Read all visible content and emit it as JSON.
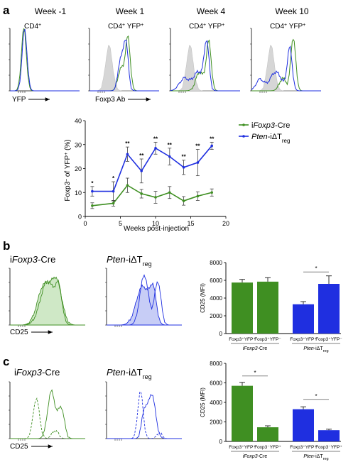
{
  "colors": {
    "green": "#3f8f22",
    "blue": "#1f2fe0",
    "gray": "#d6d6d6",
    "green_fill": "#cfe8c6",
    "blue_fill": "#c7cdf6"
  },
  "panel_a": {
    "label": "a",
    "weeks": [
      "Week -1",
      "Week 1",
      "Week 4",
      "Week 10"
    ],
    "sub": [
      "CD4",
      "CD4",
      "CD4",
      "CD4"
    ],
    "sub_sup": [
      "+",
      "+",
      "+",
      "+"
    ],
    "sub2": [
      "",
      "YFP",
      "YFP",
      "YFP"
    ],
    "sub2_sup": [
      "",
      "+",
      "+",
      "+"
    ],
    "axis_yfp": "YFP",
    "axis_foxp3": "Foxp3 Ab"
  },
  "panel_b": {
    "label": "b",
    "title_green_pre": "i",
    "title_green_it": "Foxp3",
    "title_green_post": "-Cre",
    "title_blue_it": "Pten",
    "title_blue_post": "-iΔT",
    "title_blue_sub": "reg",
    "axis": "CD25"
  },
  "panel_c": {
    "label": "c",
    "title_green_pre": "i",
    "title_green_it": "Foxp3",
    "title_green_post": "-Cre",
    "title_blue_it": "Pten",
    "title_blue_post": "-iΔT",
    "title_blue_sub": "reg",
    "axis": "CD25"
  },
  "chart_data": [
    {
      "type": "line",
      "xlabel": "Weeks post-injection",
      "ylabel": "Foxp3⁻ of YFP⁺ (%)",
      "xlim": [
        0,
        20
      ],
      "ylim": [
        0,
        40
      ],
      "xticks": [
        0,
        5,
        10,
        15,
        20
      ],
      "yticks": [
        0,
        10,
        20,
        30,
        40
      ],
      "legend_position": "top-right",
      "series": [
        {
          "name_pre": "i",
          "name_it": "Foxp3",
          "name_post": "-Cre",
          "name_sub": "",
          "color": "#3f8f22",
          "x": [
            1,
            4,
            6,
            8,
            10,
            12,
            14,
            16,
            18
          ],
          "y": [
            4.5,
            5.5,
            13,
            9.5,
            8,
            10,
            6.5,
            8.5,
            10
          ],
          "err": [
            1.2,
            1.2,
            3,
            1.8,
            2.5,
            2.5,
            1.8,
            1.8,
            1.5
          ]
        },
        {
          "name_pre": "",
          "name_it": "Pten",
          "name_post": "-iΔT",
          "name_sub": "reg",
          "color": "#1f2fe0",
          "x": [
            1,
            4,
            6,
            8,
            10,
            12,
            14,
            16,
            18
          ],
          "y": [
            10.5,
            10.5,
            26,
            19,
            28.5,
            25,
            20.5,
            22.5,
            29.5
          ],
          "err": [
            2,
            4,
            3,
            5,
            2.5,
            3.5,
            3,
            5.5,
            1.5
          ],
          "sig": [
            "*",
            "*",
            "**",
            "**",
            "**",
            "**",
            "**",
            "**",
            "**"
          ]
        }
      ]
    },
    {
      "type": "bar",
      "ylabel": "CD25 (MFI)",
      "ylim": [
        0,
        8000
      ],
      "yticks": [
        0,
        2000,
        4000,
        6000,
        8000
      ],
      "categories": [
        "Foxp3⁺YFP⁺",
        "Foxp3⁺YFP⁻",
        "Foxp3⁺YFP⁺",
        "Foxp3⁺YFP⁻"
      ],
      "values": [
        5750,
        5850,
        3300,
        5600
      ],
      "errors": [
        350,
        450,
        300,
        900
      ],
      "colors": [
        "#3f8f22",
        "#3f8f22",
        "#1f2fe0",
        "#1f2fe0"
      ],
      "groups": [
        {
          "pre": "i",
          "it": "Foxp3",
          "post": "-Cre",
          "sub": ""
        },
        {
          "pre": "",
          "it": "Pten",
          "post": "-iΔT",
          "sub": "reg"
        }
      ],
      "significance": "*"
    },
    {
      "type": "bar",
      "ylabel": "CD25 (MFI)",
      "ylim": [
        0,
        8000
      ],
      "yticks": [
        0,
        2000,
        4000,
        6000,
        8000
      ],
      "categories": [
        "Foxp3⁺YFP⁺",
        "Foxp3⁻YFP⁺",
        "Foxp3⁺YFP⁺",
        "Foxp3⁻YFP⁺"
      ],
      "values": [
        5700,
        1450,
        3300,
        1150
      ],
      "errors": [
        350,
        150,
        250,
        100
      ],
      "colors": [
        "#3f8f22",
        "#3f8f22",
        "#1f2fe0",
        "#1f2fe0"
      ],
      "groups": [
        {
          "pre": "i",
          "it": "Foxp3",
          "post": "-Cre",
          "sub": ""
        },
        {
          "pre": "",
          "it": "Pten",
          "post": "-iΔT",
          "sub": "reg"
        }
      ],
      "significance": "*"
    }
  ]
}
